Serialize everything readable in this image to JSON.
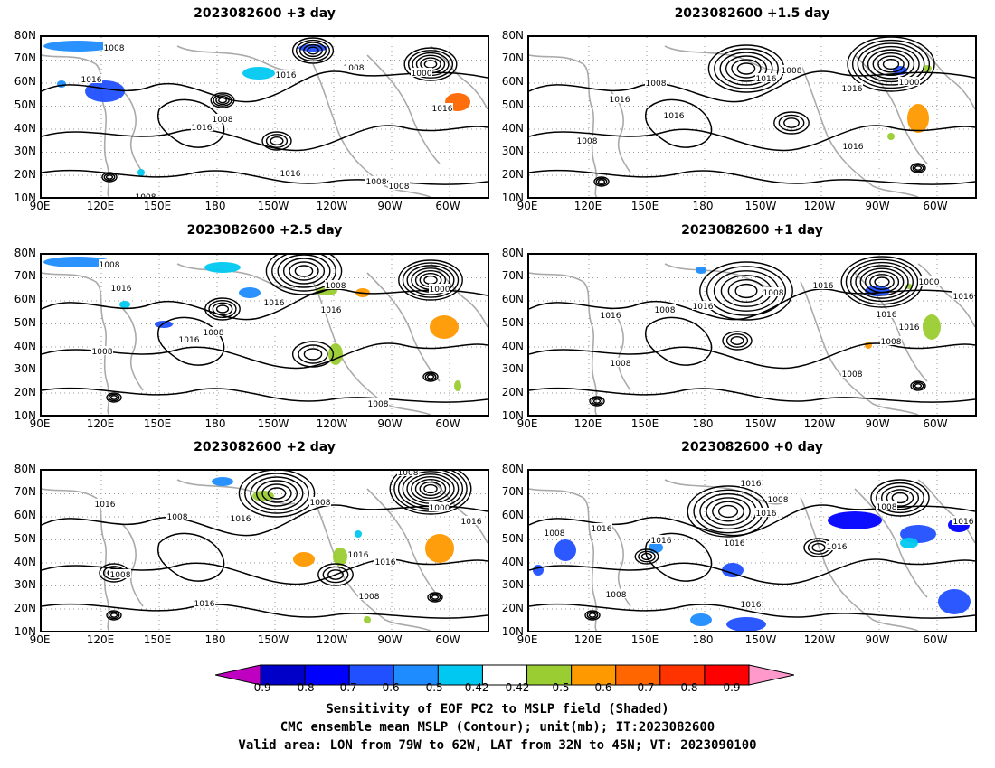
{
  "panels": [
    {
      "title": "2023082600 +3 day"
    },
    {
      "title": "2023082600 +1.5 day"
    },
    {
      "title": "2023082600 +2.5 day"
    },
    {
      "title": "2023082600 +1 day"
    },
    {
      "title": "2023082600 +2 day"
    },
    {
      "title": "2023082600 +0 day"
    }
  ],
  "axes": {
    "lat_ticks": [
      "80N",
      "70N",
      "60N",
      "50N",
      "40N",
      "30N",
      "20N",
      "10N"
    ],
    "lon_ticks": [
      "90E",
      "120E",
      "150E",
      "180",
      "150W",
      "120W",
      "90W",
      "60W"
    ]
  },
  "contour_labels": [
    "1016",
    "1008",
    "1000"
  ],
  "colorbar": {
    "labels": [
      "-0.9",
      "-0.8",
      "-0.7",
      "-0.6",
      "-0.5",
      "-0.42",
      "0.42",
      "0.5",
      "0.6",
      "0.7",
      "0.8",
      "0.9"
    ],
    "colors": [
      "#c000c0",
      "#0000c8",
      "#0000ff",
      "#2050ff",
      "#1e8cff",
      "#00c8f0",
      "#ffffff",
      "#9acd32",
      "#ff9900",
      "#ff6600",
      "#ff3300",
      "#ff0000",
      "#ff99cc"
    ]
  },
  "caption": {
    "line1": "Sensitivity of EOF PC2 to MSLP field (Shaded)",
    "line2": "CMC ensemble mean MSLP (Contour); unit(mb); IT:2023082600",
    "line3": "Valid area: LON from 79W to 62W, LAT from 32N to 45N; VT: 2023090100"
  }
}
